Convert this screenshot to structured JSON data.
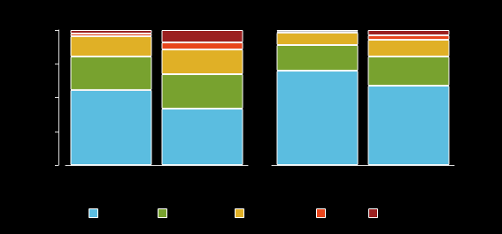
{
  "chart_data": [
    {
      "type": "bar",
      "stacked": true,
      "tick_labels": false,
      "categories": [
        null,
        null
      ],
      "ylim": [
        0,
        100
      ],
      "yticks": [
        0,
        25,
        50,
        75,
        100
      ],
      "series": [
        {
          "color": "#5bbde0",
          "values": [
            55.6,
            41.8
          ]
        },
        {
          "color": "#78a22f",
          "values": [
            24.8,
            25.5
          ]
        },
        {
          "color": "#e0b026",
          "values": [
            15.0,
            18.3
          ]
        },
        {
          "color": "#e8451c",
          "values": [
            2.0,
            5.2
          ]
        },
        {
          "color": "#9b2020",
          "values": [
            2.6,
            9.2
          ]
        }
      ]
    },
    {
      "type": "bar",
      "stacked": true,
      "tick_labels": false,
      "categories": [
        null,
        null
      ],
      "ylim": [
        0,
        100
      ],
      "series": [
        {
          "color": "#5bbde0",
          "values": [
            69.9,
            58.8
          ]
        },
        {
          "color": "#78a22f",
          "values": [
            19.0,
            21.6
          ]
        },
        {
          "color": "#e0b026",
          "values": [
            9.2,
            12.4
          ]
        },
        {
          "color": "#e8451c",
          "values": [
            1.0,
            3.3
          ]
        },
        {
          "color": "#9b2020",
          "values": [
            0.9,
            3.9
          ]
        }
      ]
    }
  ]
}
